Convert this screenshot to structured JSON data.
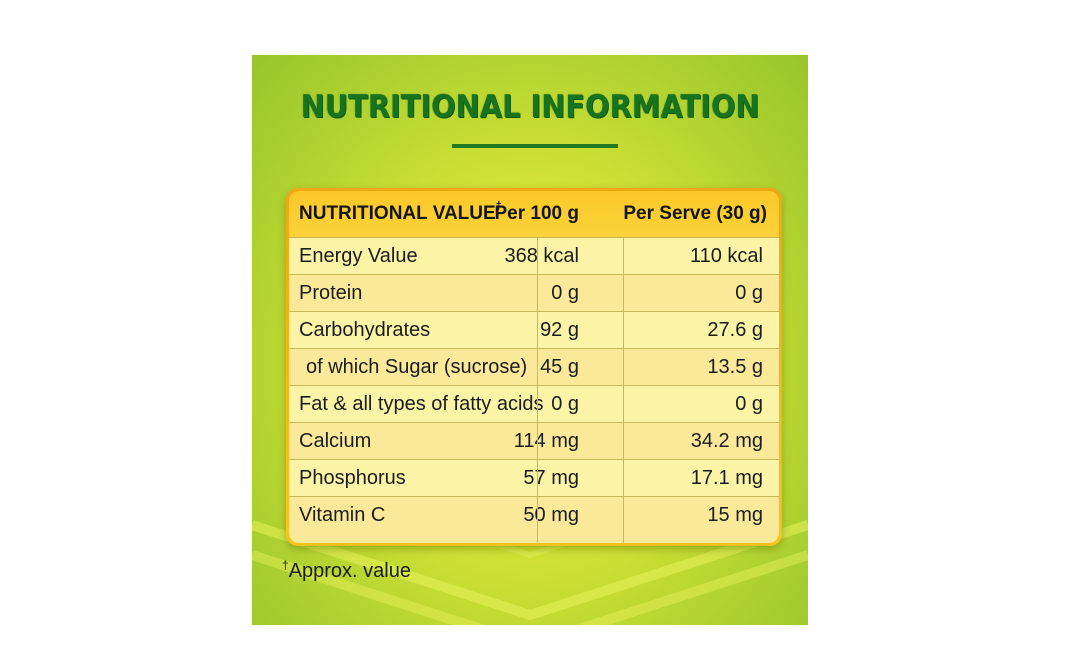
{
  "title": "NUTRITIONAL INFORMATION",
  "table": {
    "header": {
      "label": "NUTRITIONAL VALUE",
      "label_mark": "†",
      "col1": "Per 100 g",
      "col2": "Per Serve (30 g)"
    },
    "rows": [
      {
        "name": "Energy Value",
        "per100": "368 kcal",
        "perServe": "110 kcal"
      },
      {
        "name": "Protein",
        "per100": "0 g",
        "perServe": "0 g"
      },
      {
        "name": "Carbohydrates",
        "per100": "92 g",
        "perServe": "27.6 g"
      },
      {
        "name": "of which Sugar (sucrose)",
        "per100": "45 g",
        "perServe": "13.5 g"
      },
      {
        "name": "Fat & all types of fatty acids",
        "per100": "0 g",
        "perServe": "0 g"
      },
      {
        "name": "Calcium",
        "per100": "114 mg",
        "perServe": "34.2 mg"
      },
      {
        "name": "Phosphorus",
        "per100": "57 mg",
        "perServe": "17.1 mg"
      },
      {
        "name": "Vitamin C",
        "per100": "50 mg",
        "perServe": "15 mg"
      }
    ]
  },
  "footnote": {
    "mark": "†",
    "text": "Approx. value"
  },
  "colors": {
    "title": "#17741e",
    "header_bg": "#fbc928",
    "row_bg": "#fbf3a6",
    "panel_bg": "#cfe035"
  }
}
